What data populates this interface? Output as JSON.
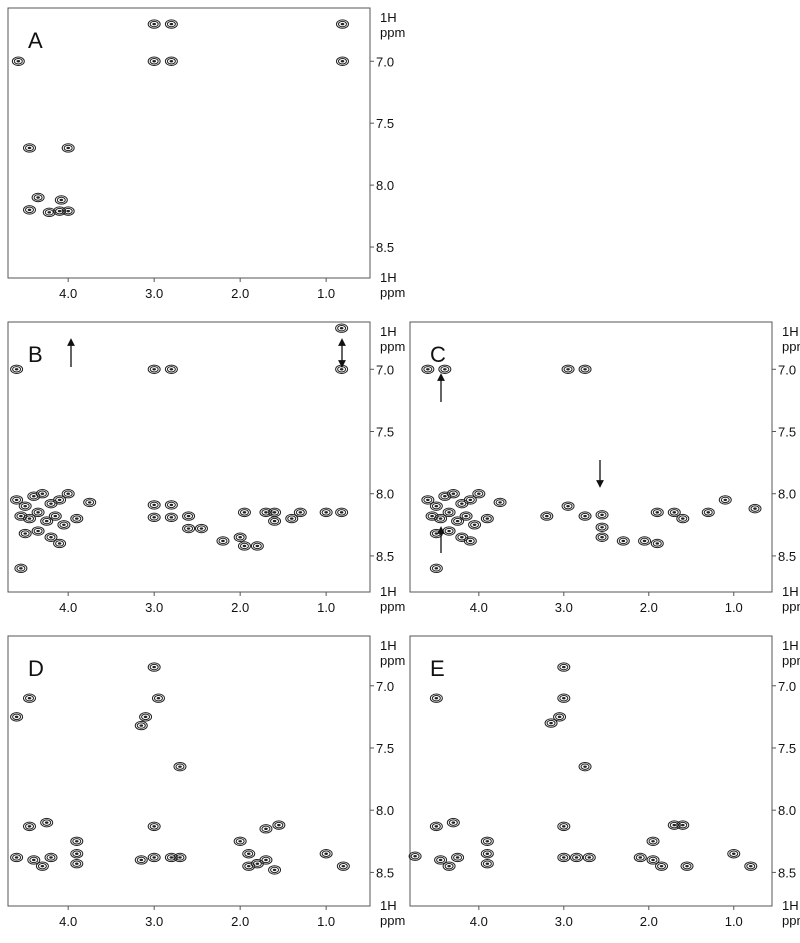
{
  "chart_data": [
    {
      "type": "scatter",
      "title": "A",
      "x_label": "1H ppm",
      "y_label": "1H ppm",
      "color": "#222",
      "xlim": [
        4.7,
        0.49
      ],
      "ylim": [
        6.57,
        8.75
      ],
      "xticks": [
        {
          "value": 4,
          "label": "4.0"
        },
        {
          "value": 3,
          "label": "3.0"
        },
        {
          "value": 2,
          "label": "2.0"
        },
        {
          "value": 1,
          "label": "1.0"
        }
      ],
      "yticks": [
        {
          "value": 7,
          "label": "7.0"
        },
        7.5,
        {
          "value": 8,
          "label": "8.0"
        },
        8.5
      ],
      "x": [
        4.58,
        3.0,
        2.8,
        3.0,
        2.8,
        0.81,
        0.81,
        4.45,
        4.0,
        4.35,
        4.45,
        4.22,
        4.1,
        4.0,
        4.08
      ],
      "y": [
        7.0,
        6.7,
        6.7,
        7.0,
        7.0,
        6.7,
        7.0,
        7.7,
        7.7,
        8.1,
        8.2,
        8.22,
        8.21,
        8.21,
        8.12
      ]
    },
    {
      "type": "scatter",
      "title": "B",
      "x_label": "1H ppm",
      "y_label": "1H ppm",
      "color": "#222",
      "xlim": [
        4.7,
        0.49
      ],
      "ylim": [
        6.62,
        8.79
      ],
      "xticks": [
        {
          "value": 4,
          "label": "4.0"
        },
        {
          "value": 3,
          "label": "3.0"
        },
        {
          "value": 2,
          "label": "2.0"
        },
        {
          "value": 1,
          "label": "1.0"
        }
      ],
      "yticks": [
        {
          "value": 7,
          "label": "7.0"
        },
        7.5,
        {
          "value": 8,
          "label": "8.0"
        },
        8.5
      ],
      "x": [
        4.6,
        3.0,
        2.8,
        0.82,
        0.82,
        4.6,
        4.5,
        4.4,
        4.3,
        4.2,
        4.1,
        4.0,
        4.55,
        4.45,
        4.35,
        4.25,
        4.15,
        4.05,
        3.9,
        4.5,
        4.35,
        4.2,
        4.1,
        3.75,
        4.55,
        3.0,
        3.0,
        2.8,
        2.8,
        2.6,
        2.6,
        2.45,
        2.2,
        2.0,
        1.95,
        1.95,
        1.8,
        1.7,
        1.6,
        1.6,
        1.4,
        1.3,
        1.0,
        0.82
      ],
      "y": [
        7.0,
        7.0,
        7.0,
        6.67,
        7.0,
        8.05,
        8.1,
        8.02,
        8.0,
        8.08,
        8.05,
        8.0,
        8.18,
        8.2,
        8.15,
        8.22,
        8.18,
        8.25,
        8.2,
        8.32,
        8.3,
        8.35,
        8.4,
        8.07,
        8.6,
        8.09,
        8.19,
        8.09,
        8.19,
        8.18,
        8.28,
        8.28,
        8.38,
        8.35,
        8.15,
        8.42,
        8.42,
        8.15,
        8.15,
        8.22,
        8.2,
        8.15,
        8.15,
        8.15
      ]
    },
    {
      "type": "scatter",
      "title": "C",
      "x_label": "1H ppm",
      "y_label": "1H ppm",
      "color": "#222",
      "xlim": [
        4.81,
        0.55
      ],
      "ylim": [
        6.62,
        8.79
      ],
      "xticks": [
        {
          "value": 4,
          "label": "4.0"
        },
        {
          "value": 3,
          "label": "3.0"
        },
        {
          "value": 2,
          "label": "2.0"
        },
        {
          "value": 1,
          "label": "1.0"
        }
      ],
      "yticks": [
        {
          "value": 7,
          "label": "7.0"
        },
        7.5,
        {
          "value": 8,
          "label": "8.0"
        },
        8.5
      ],
      "x": [
        4.6,
        4.4,
        2.95,
        2.75,
        4.6,
        4.5,
        4.4,
        4.3,
        4.2,
        4.1,
        4.0,
        4.55,
        4.45,
        4.35,
        4.25,
        4.15,
        4.05,
        3.9,
        4.5,
        4.35,
        4.2,
        4.1,
        3.75,
        4.5,
        3.2,
        2.95,
        2.75,
        2.55,
        2.55,
        2.55,
        2.3,
        2.05,
        1.9,
        1.9,
        1.7,
        1.6,
        1.3,
        1.1,
        0.75
      ],
      "y": [
        7.0,
        7.0,
        7.0,
        7.0,
        8.05,
        8.1,
        8.02,
        8.0,
        8.08,
        8.05,
        8.0,
        8.18,
        8.2,
        8.15,
        8.22,
        8.18,
        8.25,
        8.2,
        8.32,
        8.3,
        8.35,
        8.38,
        8.07,
        8.6,
        8.18,
        8.1,
        8.18,
        8.17,
        8.27,
        8.35,
        8.38,
        8.38,
        8.15,
        8.4,
        8.15,
        8.2,
        8.15,
        8.05,
        8.12
      ]
    },
    {
      "type": "scatter",
      "title": "D",
      "x_label": "1H ppm",
      "y_label": "1H ppm",
      "color": "#222",
      "xlim": [
        4.7,
        0.49
      ],
      "ylim": [
        6.6,
        8.77
      ],
      "xticks": [
        {
          "value": 4,
          "label": "4.0"
        },
        {
          "value": 3,
          "label": "3.0"
        },
        {
          "value": 2,
          "label": "2.0"
        },
        {
          "value": 1,
          "label": "1.0"
        }
      ],
      "yticks": [
        {
          "value": 7,
          "label": "7.0"
        },
        7.5,
        {
          "value": 8,
          "label": "8.0"
        },
        8.5
      ],
      "x": [
        4.6,
        4.45,
        3.0,
        2.95,
        3.1,
        3.15,
        2.7,
        4.45,
        4.25,
        4.6,
        4.4,
        4.3,
        4.2,
        3.9,
        3.9,
        3.9,
        3.0,
        3.0,
        3.15,
        2.8,
        2.7,
        2.0,
        1.9,
        1.9,
        1.8,
        1.7,
        1.55,
        1.7,
        1.6,
        1.0,
        0.8
      ],
      "y": [
        7.25,
        7.1,
        6.85,
        7.1,
        7.25,
        7.32,
        7.65,
        8.13,
        8.1,
        8.38,
        8.4,
        8.45,
        8.38,
        8.25,
        8.35,
        8.43,
        8.13,
        8.38,
        8.4,
        8.38,
        8.38,
        8.25,
        8.35,
        8.45,
        8.43,
        8.15,
        8.12,
        8.4,
        8.48,
        8.35,
        8.45
      ]
    },
    {
      "type": "scatter",
      "title": "E",
      "x_label": "1H ppm",
      "y_label": "1H ppm",
      "color": "#222",
      "xlim": [
        4.81,
        0.55
      ],
      "ylim": [
        6.6,
        8.77
      ],
      "xticks": [
        {
          "value": 4,
          "label": "4.0"
        },
        {
          "value": 3,
          "label": "3.0"
        },
        {
          "value": 2,
          "label": "2.0"
        },
        {
          "value": 1,
          "label": "1.0"
        }
      ],
      "yticks": [
        {
          "value": 7,
          "label": "7.0"
        },
        7.5,
        {
          "value": 8,
          "label": "8.0"
        },
        8.5
      ],
      "x": [
        4.5,
        3.0,
        3.0,
        3.05,
        3.15,
        2.75,
        4.5,
        4.3,
        4.75,
        4.45,
        4.35,
        4.25,
        3.9,
        3.9,
        3.9,
        3.0,
        3.0,
        2.85,
        2.7,
        2.1,
        1.95,
        1.95,
        1.85,
        1.7,
        1.6,
        1.55,
        1.0,
        0.8
      ],
      "y": [
        7.1,
        6.85,
        7.1,
        7.25,
        7.3,
        7.65,
        8.13,
        8.1,
        8.37,
        8.4,
        8.45,
        8.38,
        8.25,
        8.35,
        8.43,
        8.13,
        8.38,
        8.38,
        8.38,
        8.38,
        8.25,
        8.4,
        8.45,
        8.12,
        8.12,
        8.45,
        8.35,
        8.45
      ]
    }
  ]
}
